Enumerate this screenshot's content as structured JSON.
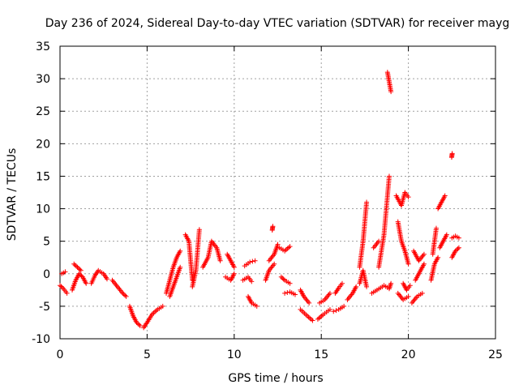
{
  "chart_data": {
    "type": "scatter",
    "title": "Day 236 of 2024, Sidereal Day-to-day VTEC variation (SDTVAR) for receiver mayg",
    "xlabel": "GPS time / hours",
    "ylabel": "SDTVAR / TECUs",
    "xlim": [
      0,
      25
    ],
    "ylim": [
      -10,
      35
    ],
    "xticks": [
      0,
      5,
      10,
      15,
      20,
      25
    ],
    "yticks": [
      -10,
      -5,
      0,
      5,
      10,
      15,
      20,
      25,
      30,
      35
    ],
    "grid": true,
    "marker": "+",
    "color": "#ff0000",
    "segments": [
      [
        [
          0.0,
          -1.8
        ],
        [
          0.2,
          -2.3
        ],
        [
          0.4,
          -3.0
        ]
      ],
      [
        [
          0.1,
          0.0
        ],
        [
          0.3,
          0.3
        ]
      ],
      [
        [
          0.7,
          -2.5
        ],
        [
          0.9,
          -1.0
        ],
        [
          1.1,
          0.0
        ],
        [
          1.3,
          -0.5
        ],
        [
          1.5,
          -1.5
        ]
      ],
      [
        [
          0.8,
          1.5
        ],
        [
          1.0,
          1.0
        ],
        [
          1.2,
          0.5
        ]
      ],
      [
        [
          1.8,
          -1.5
        ],
        [
          2.0,
          -0.3
        ],
        [
          2.2,
          0.5
        ],
        [
          2.5,
          0.0
        ],
        [
          2.7,
          -0.8
        ]
      ],
      [
        [
          3.0,
          -1.0
        ],
        [
          3.3,
          -2.0
        ],
        [
          3.6,
          -3.0
        ],
        [
          3.8,
          -3.5
        ]
      ],
      [
        [
          4.0,
          -5.0
        ],
        [
          4.2,
          -6.5
        ],
        [
          4.4,
          -7.5
        ],
        [
          4.6,
          -8.0
        ]
      ],
      [
        [
          4.8,
          -8.3
        ],
        [
          5.0,
          -7.5
        ],
        [
          5.3,
          -6.2
        ],
        [
          5.6,
          -5.5
        ],
        [
          5.9,
          -5.0
        ]
      ],
      [
        [
          6.1,
          -3.0
        ],
        [
          6.3,
          -1.0
        ],
        [
          6.5,
          1.0
        ],
        [
          6.7,
          2.5
        ],
        [
          6.9,
          3.5
        ]
      ],
      [
        [
          6.3,
          -3.5
        ],
        [
          6.5,
          -2.0
        ],
        [
          6.7,
          -0.5
        ],
        [
          6.9,
          1.0
        ]
      ],
      [
        [
          7.2,
          6.0
        ],
        [
          7.4,
          5.0
        ],
        [
          7.5,
          2.0
        ],
        [
          7.6,
          -1.0
        ]
      ],
      [
        [
          7.6,
          -2.0
        ],
        [
          7.8,
          0.5
        ],
        [
          8.0,
          6.8
        ]
      ],
      [
        [
          8.2,
          1.0
        ],
        [
          8.5,
          2.5
        ],
        [
          8.7,
          5.0
        ],
        [
          9.0,
          4.0
        ],
        [
          9.2,
          2.0
        ]
      ],
      [
        [
          9.5,
          -0.5
        ],
        [
          9.8,
          -1.0
        ],
        [
          10.0,
          0.0
        ]
      ],
      [
        [
          9.6,
          3.0
        ],
        [
          9.8,
          2.0
        ],
        [
          10.0,
          1.0
        ]
      ],
      [
        [
          10.5,
          -1.0
        ],
        [
          10.8,
          -0.5
        ],
        [
          11.0,
          -1.2
        ]
      ],
      [
        [
          10.6,
          1.2
        ],
        [
          10.9,
          1.8
        ],
        [
          11.2,
          2.0
        ]
      ],
      [
        [
          10.8,
          -3.5
        ],
        [
          11.0,
          -4.5
        ],
        [
          11.3,
          -5.0
        ]
      ],
      [
        [
          11.8,
          -1.0
        ],
        [
          12.0,
          0.5
        ],
        [
          12.3,
          1.5
        ]
      ],
      [
        [
          12.0,
          2.0
        ],
        [
          12.3,
          3.0
        ],
        [
          12.5,
          4.5
        ]
      ],
      [
        [
          12.2,
          7.0
        ]
      ],
      [
        [
          12.6,
          4.0
        ],
        [
          12.9,
          3.5
        ],
        [
          13.2,
          4.2
        ]
      ],
      [
        [
          12.7,
          -0.5
        ],
        [
          12.9,
          -1.0
        ],
        [
          13.2,
          -1.5
        ]
      ],
      [
        [
          12.9,
          -3.0
        ],
        [
          13.2,
          -2.8
        ],
        [
          13.5,
          -3.2
        ]
      ],
      [
        [
          13.8,
          -2.5
        ],
        [
          14.0,
          -3.5
        ],
        [
          14.3,
          -4.5
        ]
      ],
      [
        [
          13.8,
          -5.5
        ],
        [
          14.2,
          -6.5
        ],
        [
          14.5,
          -7.2
        ]
      ],
      [
        [
          14.8,
          -7.0
        ],
        [
          15.1,
          -6.3
        ],
        [
          15.5,
          -5.5
        ]
      ],
      [
        [
          14.9,
          -4.5
        ],
        [
          15.2,
          -4.0
        ],
        [
          15.5,
          -3.0
        ]
      ],
      [
        [
          15.7,
          -5.8
        ],
        [
          16.0,
          -5.5
        ],
        [
          16.3,
          -5.0
        ]
      ],
      [
        [
          15.8,
          -3.0
        ],
        [
          16.0,
          -2.2
        ],
        [
          16.2,
          -1.5
        ]
      ],
      [
        [
          16.5,
          -4.0
        ],
        [
          16.8,
          -3.0
        ],
        [
          17.0,
          -2.0
        ]
      ],
      [
        [
          17.2,
          -1.5
        ],
        [
          17.4,
          0.5
        ],
        [
          17.6,
          -2.0
        ]
      ],
      [
        [
          17.2,
          1.0
        ],
        [
          17.4,
          5.0
        ],
        [
          17.6,
          11.0
        ]
      ],
      [
        [
          17.9,
          -3.0
        ],
        [
          18.2,
          -2.5
        ],
        [
          18.5,
          -2.0
        ]
      ],
      [
        [
          18.0,
          4.0
        ],
        [
          18.3,
          5.0
        ]
      ],
      [
        [
          18.3,
          1.0
        ],
        [
          18.6,
          6.0
        ],
        [
          18.9,
          15.0
        ]
      ],
      [
        [
          18.8,
          31.0
        ],
        [
          18.9,
          29.5
        ],
        [
          19.0,
          28.0
        ]
      ],
      [
        [
          18.6,
          -1.8
        ],
        [
          18.9,
          -2.3
        ],
        [
          19.0,
          -1.5
        ]
      ],
      [
        [
          19.3,
          12.0
        ],
        [
          19.6,
          10.5
        ],
        [
          19.8,
          12.5
        ],
        [
          20.0,
          11.8
        ]
      ],
      [
        [
          19.4,
          8.0
        ],
        [
          19.6,
          5.0
        ],
        [
          19.8,
          3.5
        ],
        [
          20.0,
          1.5
        ]
      ],
      [
        [
          19.4,
          -3.0
        ],
        [
          19.7,
          -4.0
        ],
        [
          20.0,
          -3.5
        ]
      ],
      [
        [
          19.7,
          -1.5
        ],
        [
          19.9,
          -2.5
        ],
        [
          20.1,
          -1.8
        ]
      ],
      [
        [
          20.2,
          -4.5
        ],
        [
          20.5,
          -3.5
        ],
        [
          20.8,
          -3.0
        ]
      ],
      [
        [
          20.4,
          -1.0
        ],
        [
          20.7,
          0.5
        ],
        [
          20.9,
          1.5
        ]
      ],
      [
        [
          20.3,
          3.5
        ],
        [
          20.6,
          2.0
        ],
        [
          20.9,
          3.0
        ]
      ],
      [
        [
          21.3,
          -1.0
        ],
        [
          21.5,
          1.5
        ],
        [
          21.7,
          2.5
        ]
      ],
      [
        [
          21.4,
          3.0
        ],
        [
          21.6,
          7.0
        ]
      ],
      [
        [
          21.7,
          10.0
        ],
        [
          21.9,
          11.0
        ],
        [
          22.1,
          12.0
        ]
      ],
      [
        [
          21.8,
          4.0
        ],
        [
          22.0,
          5.0
        ],
        [
          22.2,
          6.0
        ]
      ],
      [
        [
          22.5,
          18.2
        ]
      ],
      [
        [
          22.5,
          5.5
        ],
        [
          22.7,
          5.8
        ],
        [
          22.9,
          5.5
        ]
      ],
      [
        [
          22.5,
          2.5
        ],
        [
          22.7,
          3.5
        ],
        [
          22.9,
          4.0
        ]
      ]
    ]
  }
}
